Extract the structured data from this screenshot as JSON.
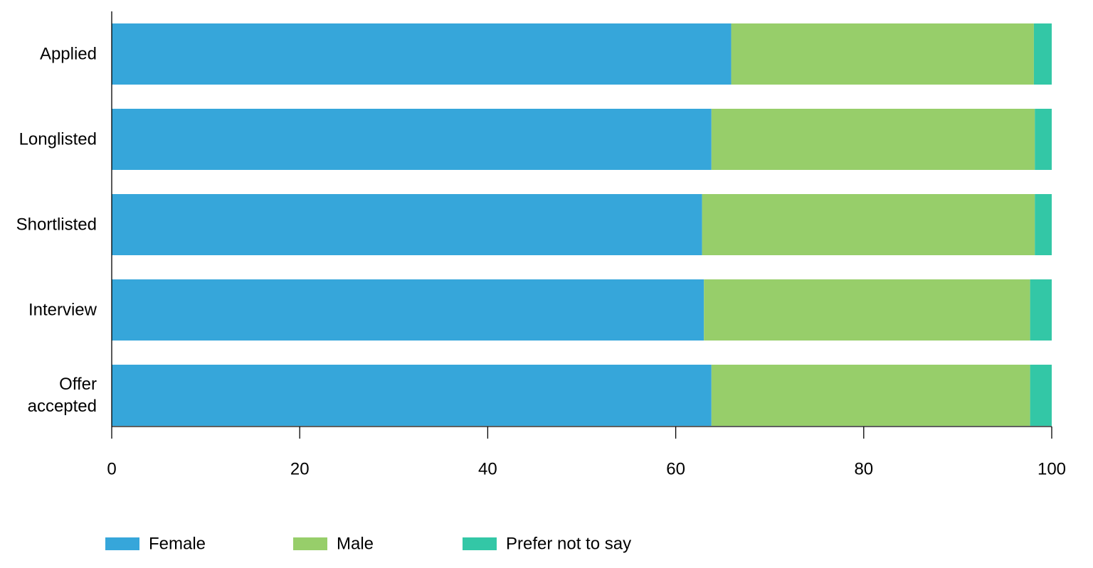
{
  "chart_data": {
    "type": "bar",
    "orientation": "horizontal",
    "stacked": true,
    "title": "",
    "xlabel": "",
    "ylabel": "",
    "xlim": [
      0,
      100
    ],
    "xticks": [
      0,
      20,
      40,
      60,
      80,
      100
    ],
    "grid": false,
    "legend_position": "bottom",
    "categories": [
      [
        "Applied"
      ],
      [
        "Longlisted"
      ],
      [
        "Shortlisted"
      ],
      [
        "Interview"
      ],
      [
        "Offer",
        "accepted"
      ]
    ],
    "series": [
      {
        "name": "Female",
        "color": "#36a6da",
        "values": [
          65.9,
          63.8,
          62.8,
          63.0,
          63.8
        ]
      },
      {
        "name": "Male",
        "color": "#97ce6a",
        "values": [
          32.2,
          34.4,
          35.4,
          34.7,
          33.9
        ]
      },
      {
        "name": "Prefer not to say",
        "color": "#33c7a6",
        "values": [
          1.9,
          1.8,
          1.8,
          2.3,
          2.3
        ]
      }
    ]
  }
}
